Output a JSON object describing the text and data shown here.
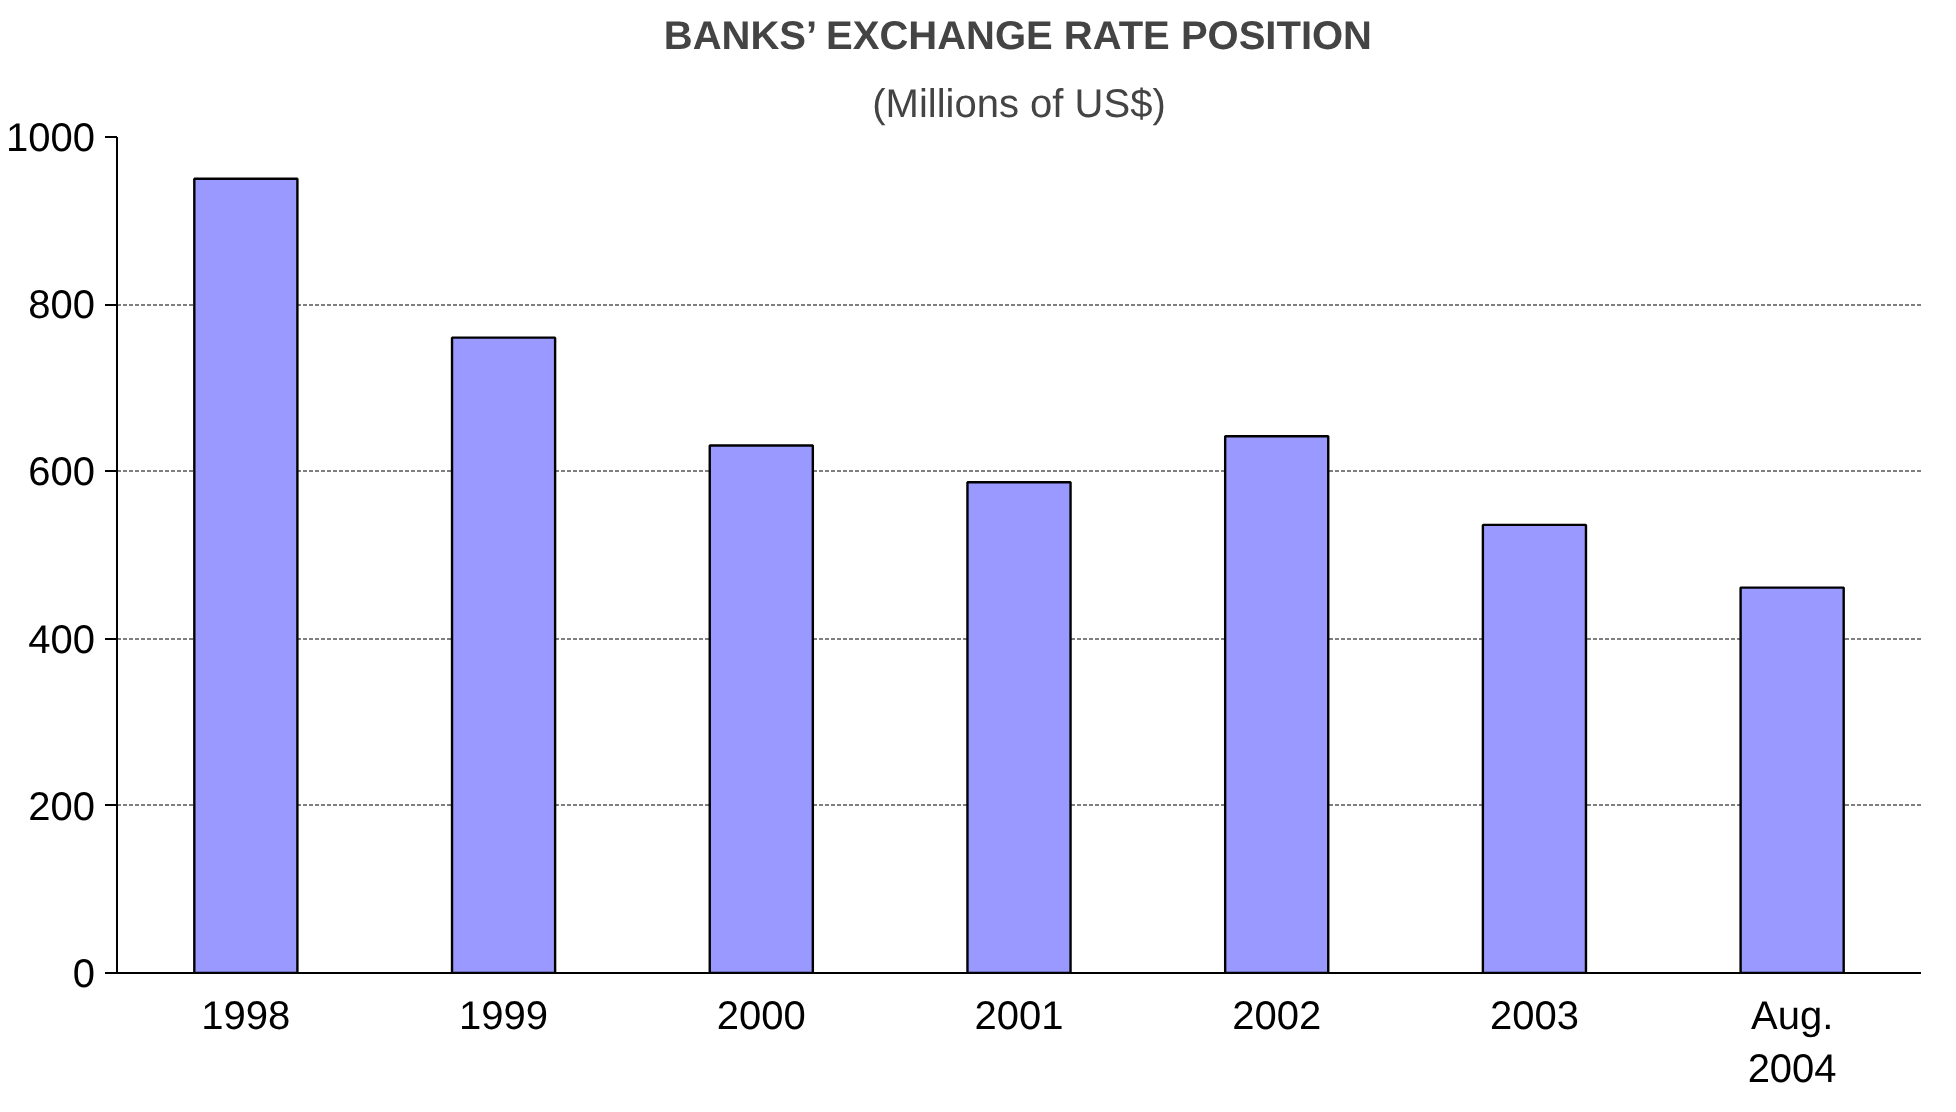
{
  "chart_data": {
    "type": "bar",
    "title": "BANKS’ EXCHANGE RATE POSITION",
    "subtitle": "(Millions of US$)",
    "categories": [
      "1998",
      "1999",
      "2000",
      "2001",
      "2002",
      "2003",
      "Aug.\n2004"
    ],
    "values": [
      950,
      760,
      631,
      587,
      642,
      536,
      461
    ],
    "color": "#9999ff",
    "ylim": [
      0,
      1000
    ],
    "yticks": [
      0,
      200,
      400,
      600,
      800,
      1000
    ],
    "grid": "y"
  }
}
